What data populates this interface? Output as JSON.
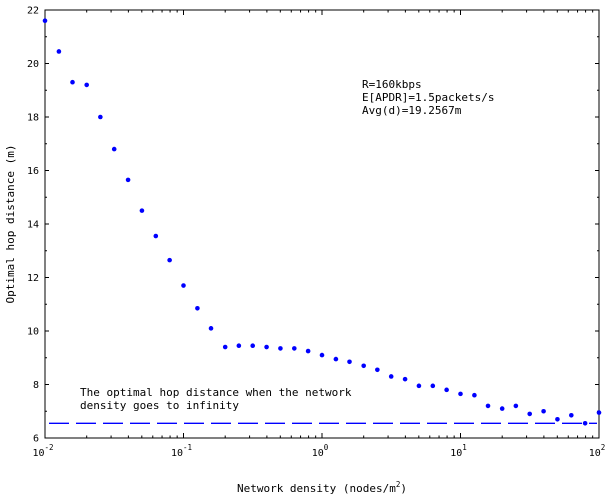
{
  "chart_data": {
    "type": "scatter",
    "title": "",
    "xlabel_prefix": "Network density (nodes/m",
    "xlabel_sup": "2",
    "xlabel_suffix": ")",
    "ylabel": "Optimal hop distance (m)",
    "xscale": "log",
    "xlim": [
      0.01,
      100
    ],
    "ylim": [
      6,
      22
    ],
    "grid": false,
    "marker_color": "#0000ff",
    "line_color": "#0000ff",
    "x_ticks": [
      {
        "base": "10",
        "exp": "-2"
      },
      {
        "base": "10",
        "exp": "-1"
      },
      {
        "base": "10",
        "exp": "0"
      },
      {
        "base": "10",
        "exp": "1"
      },
      {
        "base": "10",
        "exp": "2"
      }
    ],
    "y_ticks": [
      "6",
      "8",
      "10",
      "12",
      "14",
      "16",
      "18",
      "20",
      "22"
    ],
    "params": [
      "R=160kbps",
      "E[APDR]=1.5packets/s",
      "Avg(d)=19.2567m"
    ],
    "annotation_lines": [
      "The optimal hop distance when the network",
      "density goes to infinity"
    ],
    "asymptote": {
      "y": 6.55,
      "style": "dashed"
    },
    "series": [
      {
        "x": [
          0.01,
          0.0126,
          0.0158,
          0.02,
          0.0251,
          0.0316,
          0.0398,
          0.0501,
          0.0631,
          0.0794,
          0.1,
          0.126,
          0.158,
          0.2,
          0.251,
          0.316,
          0.398,
          0.501,
          0.631,
          0.794,
          1,
          1.26,
          1.58,
          2,
          2.51,
          3.16,
          3.98,
          5.01,
          6.31,
          7.94,
          10,
          12.6,
          15.8,
          20,
          25.1,
          31.6,
          39.8,
          50.1,
          63.1,
          79.4,
          100
        ],
        "y": [
          21.6,
          20.45,
          19.3,
          19.2,
          18.0,
          16.8,
          15.65,
          14.5,
          13.55,
          12.65,
          11.7,
          10.85,
          10.1,
          9.4,
          9.45,
          9.45,
          9.4,
          9.35,
          9.35,
          9.25,
          9.1,
          8.95,
          8.85,
          8.7,
          8.55,
          8.3,
          8.2,
          7.95,
          7.95,
          7.8,
          7.65,
          7.6,
          7.2,
          7.1,
          7.2,
          6.9,
          7.0,
          6.7,
          6.85,
          6.55,
          6.95
        ]
      }
    ]
  }
}
